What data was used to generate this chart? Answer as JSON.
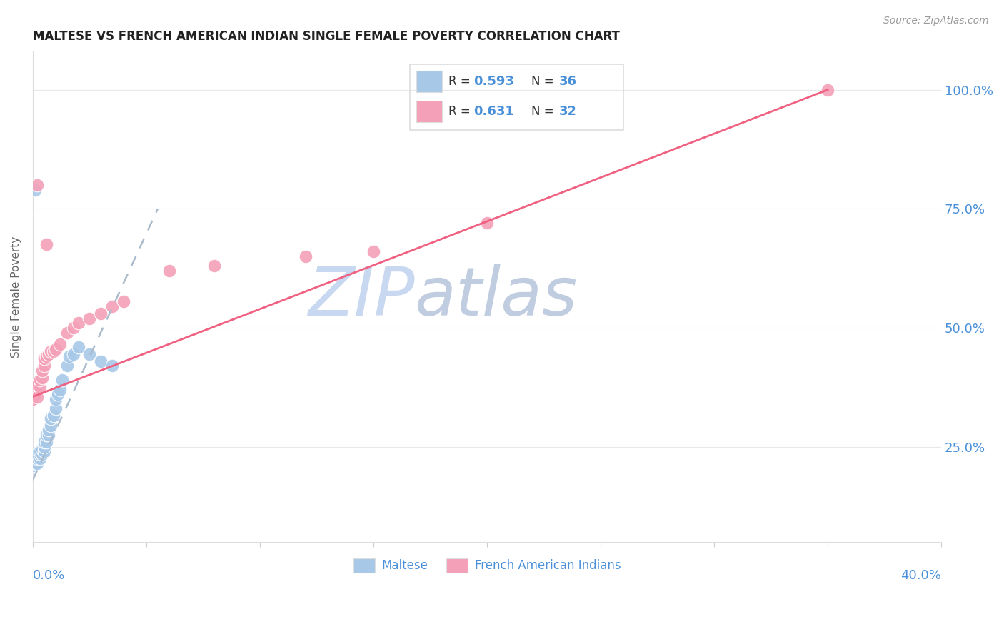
{
  "title": "MALTESE VS FRENCH AMERICAN INDIAN SINGLE FEMALE POVERTY CORRELATION CHART",
  "source": "Source: ZipAtlas.com",
  "ylabel": "Single Female Poverty",
  "maltese_color": "#a8c8e8",
  "french_color": "#f4a0b8",
  "trendline_maltese_color": "#6699cc",
  "trendline_maltese_dash_color": "#aabbcc",
  "trendline_french_color": "#f06080",
  "watermark_zip_color": "#c0d4ee",
  "watermark_atlas_color": "#c0cce0",
  "legend_border_color": "#dddddd",
  "grid_color": "#e8e8e8",
  "spine_color": "#dddddd",
  "r_n_text_color": "#4a90d9",
  "label_color": "#4a90d9",
  "title_color": "#222222",
  "ylabel_color": "#666666",
  "source_color": "#999999",
  "xlim": [
    0.0,
    0.4
  ],
  "ylim": [
    0.05,
    1.08
  ],
  "maltese_x": [
    0.0,
    0.0,
    0.001,
    0.001,
    0.001,
    0.002,
    0.002,
    0.002,
    0.003,
    0.003,
    0.003,
    0.004,
    0.004,
    0.005,
    0.005,
    0.005,
    0.006,
    0.006,
    0.007,
    0.007,
    0.008,
    0.008,
    0.009,
    0.01,
    0.01,
    0.011,
    0.012,
    0.013,
    0.015,
    0.016,
    0.018,
    0.02,
    0.025,
    0.03,
    0.035,
    0.001
  ],
  "maltese_y": [
    0.21,
    0.22,
    0.215,
    0.225,
    0.23,
    0.215,
    0.225,
    0.235,
    0.225,
    0.235,
    0.24,
    0.235,
    0.245,
    0.24,
    0.25,
    0.26,
    0.26,
    0.275,
    0.275,
    0.285,
    0.295,
    0.31,
    0.315,
    0.33,
    0.35,
    0.36,
    0.37,
    0.39,
    0.42,
    0.44,
    0.445,
    0.46,
    0.445,
    0.43,
    0.42,
    0.79
  ],
  "french_x": [
    0.0,
    0.001,
    0.001,
    0.002,
    0.002,
    0.003,
    0.003,
    0.004,
    0.004,
    0.005,
    0.005,
    0.006,
    0.007,
    0.008,
    0.009,
    0.01,
    0.012,
    0.015,
    0.018,
    0.02,
    0.025,
    0.03,
    0.035,
    0.04,
    0.06,
    0.08,
    0.12,
    0.15,
    0.2,
    0.35,
    0.002,
    0.006
  ],
  "french_y": [
    0.35,
    0.36,
    0.37,
    0.355,
    0.38,
    0.375,
    0.39,
    0.395,
    0.41,
    0.42,
    0.435,
    0.44,
    0.445,
    0.45,
    0.45,
    0.455,
    0.465,
    0.49,
    0.5,
    0.51,
    0.52,
    0.53,
    0.545,
    0.555,
    0.62,
    0.63,
    0.65,
    0.66,
    0.72,
    1.0,
    0.8,
    0.675
  ],
  "maltese_trend_x0": 0.0,
  "maltese_trend_y0": 0.18,
  "maltese_trend_x1": 0.055,
  "maltese_trend_y1": 0.75,
  "french_trend_x0": 0.0,
  "french_trend_y0": 0.355,
  "french_trend_x1": 0.35,
  "french_trend_y1": 1.0
}
